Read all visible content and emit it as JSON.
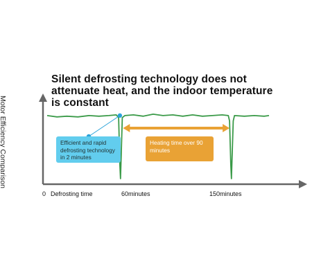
{
  "title": {
    "line1": "Silent defrosting technology does not",
    "line2": "attenuate heat, and the indoor temperature",
    "line3": "is constant"
  },
  "chart_data": {
    "type": "line",
    "title": "Silent defrosting technology does not attenuate heat, and the indoor temperature is constant",
    "ylabel": "Motor Efficiency Comparison",
    "xlabel": "",
    "x_ticks": [
      "0",
      "Defrosting time",
      "60minutes",
      "150minutes"
    ],
    "series": [
      {
        "values": [
          {
            "x": 0,
            "y": 0.93
          },
          {
            "x": 8,
            "y": 0.91
          },
          {
            "x": 16,
            "y": 0.92
          },
          {
            "x": 25,
            "y": 0.91
          },
          {
            "x": 34,
            "y": 0.93
          },
          {
            "x": 42,
            "y": 0.92
          },
          {
            "x": 50,
            "y": 0.93
          },
          {
            "x": 56,
            "y": 0.94
          },
          {
            "x": 58,
            "y": 0.9
          },
          {
            "x": 59,
            "y": 0.2
          },
          {
            "x": 59.5,
            "y": 0.0
          },
          {
            "x": 60,
            "y": 0.3
          },
          {
            "x": 61,
            "y": 0.9
          },
          {
            "x": 63,
            "y": 0.93
          },
          {
            "x": 70,
            "y": 0.94
          },
          {
            "x": 78,
            "y": 0.92
          },
          {
            "x": 86,
            "y": 0.95
          },
          {
            "x": 94,
            "y": 0.93
          },
          {
            "x": 102,
            "y": 0.94
          },
          {
            "x": 110,
            "y": 0.92
          },
          {
            "x": 118,
            "y": 0.94
          },
          {
            "x": 126,
            "y": 0.92
          },
          {
            "x": 134,
            "y": 0.93
          },
          {
            "x": 142,
            "y": 0.94
          },
          {
            "x": 147,
            "y": 0.93
          },
          {
            "x": 148,
            "y": 0.85
          },
          {
            "x": 149,
            "y": 0.2
          },
          {
            "x": 149.5,
            "y": 0.0
          },
          {
            "x": 150,
            "y": 0.3
          },
          {
            "x": 151,
            "y": 0.85
          },
          {
            "x": 152,
            "y": 0.93
          },
          {
            "x": 160,
            "y": 0.92
          },
          {
            "x": 168,
            "y": 0.93
          },
          {
            "x": 176,
            "y": 0.92
          },
          {
            "x": 180,
            "y": 0.93
          }
        ]
      }
    ],
    "xlim": [
      0,
      180
    ],
    "ylim": [
      0,
      1
    ],
    "grid": false,
    "colors": {
      "line": "#3a9a48",
      "axis": "#666666",
      "arrow": "#e9a235",
      "callout": "#2ba3d9",
      "box_blue": "#62cdee",
      "box_orange": "#e9a235"
    },
    "annotations": {
      "blue_box": "Efficient and rapid defrosting technology in 2 minutes",
      "orange_box": "Heating time over 90 minutes"
    }
  }
}
